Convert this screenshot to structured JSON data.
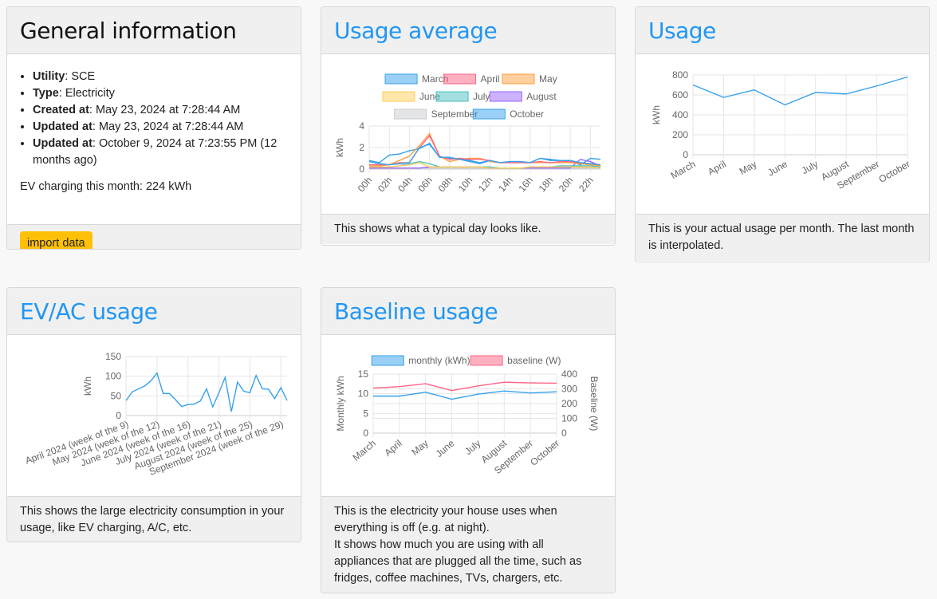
{
  "general": {
    "title": "General information",
    "items": [
      {
        "label": "Utility",
        "value": ": SCE"
      },
      {
        "label": "Type",
        "value": ": Electricity"
      },
      {
        "label": "Created at",
        "value": ": May 23, 2024 at 7:28:44 AM"
      },
      {
        "label": "Updated at",
        "value": ": May 23, 2024 at 7:28:44 AM"
      },
      {
        "label": "Updated at",
        "value": ": October 9, 2024 at 7:23:55 PM (12 months ago)"
      }
    ],
    "ev_text": "EV charging this month: 224 kWh",
    "import_label": "import data",
    "import_color": "#ffc107"
  },
  "usage_average": {
    "title": "Usage average",
    "footer": "This shows what a typical day looks like."
  },
  "usage": {
    "title": "Usage",
    "footer": "This is your actual usage per month. The last month is interpolated."
  },
  "evac": {
    "title": "EV/AC usage",
    "footer": "This shows the large electricity consumption in your usage, like EV charging, A/C, etc."
  },
  "baseline": {
    "title": "Baseline usage",
    "footer1": "This is the electricity your house uses when everything is off (e.g. at night).",
    "footer2": "It shows how much you are using with all appliances that are plugged all the time, such as fridges, coffee machines, TVs, chargers, etc."
  },
  "chart_data": [
    {
      "id": "avg",
      "type": "line",
      "ylabel": "kWh",
      "ylim": [
        0,
        4
      ],
      "yticks": [
        0,
        2,
        4
      ],
      "legend": "top",
      "grid": true,
      "x": [
        "00h",
        "01h",
        "02h",
        "03h",
        "04h",
        "05h",
        "06h",
        "07h",
        "08h",
        "09h",
        "10h",
        "11h",
        "12h",
        "13h",
        "14h",
        "15h",
        "16h",
        "17h",
        "18h",
        "19h",
        "20h",
        "21h",
        "22h",
        "23h"
      ],
      "xtick_labels": [
        "00h",
        "02h",
        "04h",
        "06h",
        "08h",
        "10h",
        "12h",
        "14h",
        "16h",
        "18h",
        "20h",
        "22h"
      ],
      "series": [
        {
          "name": "March",
          "color": "#36a2eb",
          "values": [
            0.7,
            0.5,
            0.4,
            0.5,
            0.6,
            2.0,
            2.3,
            1.1,
            1.1,
            0.9,
            0.8,
            0.6,
            0.8,
            0.6,
            0.7,
            0.7,
            0.6,
            1.0,
            0.9,
            0.8,
            0.8,
            0.6,
            0.5,
            0.4
          ]
        },
        {
          "name": "April",
          "color": "#ff6384",
          "values": [
            0.4,
            0.4,
            0.4,
            0.6,
            0.6,
            2.0,
            3.1,
            1.2,
            0.9,
            1.0,
            0.9,
            0.9,
            0.8,
            0.6,
            0.6,
            0.6,
            0.6,
            0.7,
            0.6,
            0.7,
            0.7,
            0.6,
            0.5,
            0.4
          ]
        },
        {
          "name": "May",
          "color": "#ff9f40",
          "values": [
            0.3,
            0.3,
            0.4,
            0.8,
            1.2,
            2.2,
            3.3,
            1.2,
            0.7,
            0.9,
            1.0,
            1.0,
            0.7,
            0.6,
            0.6,
            0.6,
            0.6,
            0.6,
            0.6,
            0.6,
            0.6,
            0.5,
            0.4,
            0.3
          ]
        },
        {
          "name": "June",
          "color": "#ffcd56",
          "values": [
            0.2,
            0.2,
            0.2,
            0.3,
            0.4,
            0.6,
            0.2,
            0.2,
            0.2,
            0.2,
            0.2,
            0.2,
            0.1,
            0.1,
            0.1,
            0.1,
            0.2,
            0.2,
            0.2,
            0.2,
            0.2,
            0.2,
            0.2,
            0.1
          ]
        },
        {
          "name": "July",
          "color": "#4bc0c0",
          "values": [
            0.3,
            0.2,
            0.2,
            0.3,
            0.5,
            0.7,
            0.5,
            0.2,
            0.2,
            0.2,
            0.2,
            0.2,
            0.2,
            0.1,
            0.1,
            0.1,
            0.2,
            0.2,
            0.2,
            0.3,
            0.3,
            0.3,
            0.3,
            0.2
          ]
        },
        {
          "name": "August",
          "color": "#9966ff",
          "values": [
            0.1,
            0.1,
            0.1,
            0.1,
            0.1,
            0.1,
            0.2,
            0.2,
            0.2,
            0.2,
            0.2,
            0.2,
            0.1,
            0.1,
            0.1,
            0.1,
            0.1,
            0.1,
            0.1,
            0.1,
            0.1,
            0.9,
            0.7,
            0.3
          ]
        },
        {
          "name": "September",
          "color": "#c9cbcf",
          "values": [
            0.1,
            0.1,
            0.1,
            0.1,
            0.1,
            0.1,
            0.1,
            0.1,
            0.1,
            0.1,
            0.1,
            0.1,
            0.1,
            0.1,
            0.1,
            0.1,
            0.1,
            0.1,
            0.1,
            0.1,
            0.1,
            0.1,
            0.1,
            0.1
          ]
        },
        {
          "name": "October",
          "color": "#36a2eb",
          "values": [
            0.8,
            0.6,
            1.3,
            1.4,
            1.7,
            1.9,
            2.4,
            1.1,
            1.0,
            0.9,
            0.7,
            0.5,
            0.8,
            0.6,
            0.7,
            0.7,
            0.6,
            1.0,
            0.8,
            0.8,
            0.7,
            0.4,
            1.0,
            0.9
          ]
        }
      ]
    },
    {
      "id": "usage",
      "type": "line",
      "ylabel": "kWh",
      "ylim": [
        0,
        800
      ],
      "yticks": [
        0,
        200,
        400,
        600,
        800
      ],
      "grid": true,
      "x": [
        "March",
        "April",
        "May",
        "June",
        "July",
        "August",
        "September",
        "October"
      ],
      "series": [
        {
          "color": "#36a2eb",
          "values": [
            700,
            575,
            650,
            500,
            625,
            610,
            690,
            780
          ]
        }
      ]
    },
    {
      "id": "ev",
      "type": "line",
      "ylabel": "kWh",
      "ylim": [
        0,
        150
      ],
      "yticks": [
        0,
        50,
        100,
        150
      ],
      "grid": true,
      "xtick_labels": [
        "April 2024 (week of the 9)",
        "May 2024 (week of the 12)",
        "June 2024 (week of the 16)",
        "July 2024 (week of the 21)",
        "August 2024 (week of the 25)",
        "September 2024 (week of the 29)"
      ],
      "series": [
        {
          "color": "#36a2eb",
          "values": [
            38,
            60,
            68,
            75,
            88,
            108,
            56,
            56,
            40,
            23,
            28,
            29,
            37,
            68,
            22,
            58,
            97,
            10,
            85,
            62,
            58,
            102,
            68,
            67,
            43,
            71,
            38
          ]
        }
      ]
    },
    {
      "id": "base",
      "type": "line",
      "grid": true,
      "legend": "top",
      "x": [
        "March",
        "April",
        "May",
        "June",
        "July",
        "August",
        "September",
        "October"
      ],
      "y_left": {
        "label": "Monthly kWh",
        "lim": [
          0,
          15
        ],
        "ticks": [
          0,
          5,
          10,
          15
        ]
      },
      "y_right": {
        "label": "Baseline (W)",
        "lim": [
          0,
          400
        ],
        "ticks": [
          0,
          100,
          200,
          300,
          400
        ]
      },
      "series": [
        {
          "name": "monthly (kWh)",
          "axis": "left",
          "color": "#36a2eb",
          "values": [
            9.4,
            9.4,
            10.4,
            8.6,
            9.9,
            10.7,
            10.2,
            10.5
          ]
        },
        {
          "name": "baseline (W)",
          "axis": "right",
          "color": "#ff6384",
          "values": [
            305,
            315,
            335,
            288,
            320,
            345,
            340,
            338
          ]
        }
      ]
    }
  ]
}
